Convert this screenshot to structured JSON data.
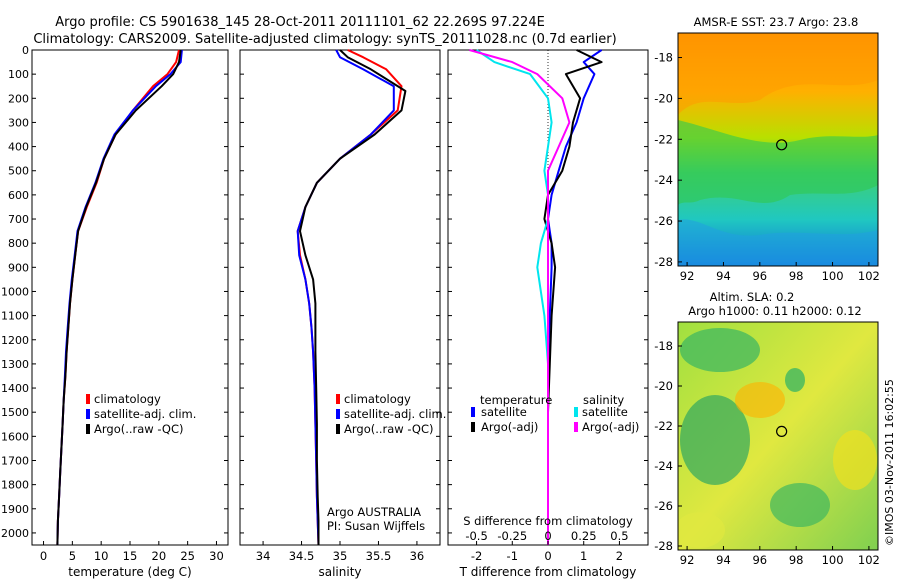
{
  "title_line1": "Argo profile: CS 5901638_145 28-Oct-2011 20111101_62 22.269S 97.224E",
  "title_line2": "Climatology: CARS2009. Satellite-adjusted climatology: synTS_20111028.nc (0.7d earlier)",
  "colors": {
    "climatology": "#ff0000",
    "satellite": "#0000ff",
    "argo": "#000000",
    "sat_salinity": "#00e5ee",
    "argo_salinity": "#ff00ff"
  },
  "chart_data": [
    {
      "type": "line",
      "name": "temperature-profile",
      "xlabel": "temperature (deg C)",
      "ylabel": "",
      "xlim": [
        -2,
        32
      ],
      "ylim": [
        2050,
        0
      ],
      "xticks": [
        0,
        5,
        10,
        15,
        20,
        25,
        30
      ],
      "yticks": [
        0,
        100,
        200,
        300,
        400,
        500,
        600,
        700,
        800,
        900,
        1000,
        1100,
        1200,
        1300,
        1400,
        1500,
        1600,
        1700,
        1800,
        1900,
        2000
      ],
      "legend": [
        "climatology",
        "satellite-adj. clim.",
        "Argo(..raw -QC)"
      ],
      "legend_position": "lower-middle",
      "series": [
        {
          "name": "climatology",
          "color": "#ff0000",
          "x": [
            23.5,
            23.0,
            21.5,
            19.0,
            15.5,
            12.5,
            10.5,
            9.2,
            7.5,
            6.0,
            5.5,
            5.0,
            4.6,
            4.3,
            4.0,
            3.8,
            3.5,
            3.3,
            3.1,
            2.9,
            2.7,
            2.5,
            2.4
          ],
          "y": [
            0,
            50,
            100,
            150,
            250,
            350,
            450,
            550,
            650,
            750,
            850,
            950,
            1050,
            1150,
            1250,
            1350,
            1450,
            1550,
            1650,
            1750,
            1850,
            1950,
            2050
          ]
        },
        {
          "name": "satellite-adj. clim.",
          "color": "#0000ff",
          "x": [
            24.0,
            23.8,
            22.0,
            19.5,
            15.5,
            12.3,
            10.4,
            9.0,
            7.3,
            5.9,
            5.4,
            4.9,
            4.5,
            4.2,
            3.9,
            3.7,
            3.5,
            3.3,
            3.1,
            2.9,
            2.7,
            2.5,
            2.4
          ],
          "y": [
            0,
            50,
            100,
            150,
            250,
            350,
            450,
            550,
            650,
            750,
            850,
            950,
            1050,
            1150,
            1250,
            1350,
            1450,
            1550,
            1650,
            1750,
            1850,
            1950,
            2050
          ]
        },
        {
          "name": "Argo(..raw -QC)",
          "color": "#000000",
          "x": [
            23.8,
            23.5,
            22.5,
            20.5,
            16.0,
            12.5,
            10.5,
            9.1,
            7.4,
            6.0,
            5.5,
            5.0,
            4.6,
            4.3,
            4.0,
            3.8,
            3.5,
            3.3,
            3.1,
            2.9,
            2.7,
            2.5,
            2.4
          ],
          "y": [
            0,
            50,
            100,
            150,
            250,
            350,
            450,
            550,
            650,
            750,
            850,
            950,
            1050,
            1150,
            1250,
            1350,
            1450,
            1550,
            1650,
            1750,
            1850,
            1950,
            2050
          ]
        }
      ]
    },
    {
      "type": "line",
      "name": "salinity-profile",
      "xlabel": "salinity",
      "ylabel": "",
      "xlim": [
        33.7,
        36.3
      ],
      "ylim": [
        2050,
        0
      ],
      "xticks": [
        34,
        34.5,
        35,
        35.5,
        36
      ],
      "legend": [
        "climatology",
        "satellite-adj. clim.",
        "Argo(..raw -QC)"
      ],
      "legend_position": "lower-middle",
      "annotations": [
        "Argo AUSTRALIA",
        "PI: Susan Wijffels"
      ],
      "series": [
        {
          "name": "climatology",
          "color": "#ff0000",
          "x": [
            35.1,
            35.3,
            35.6,
            35.8,
            35.75,
            35.4,
            35.0,
            34.7,
            34.55,
            34.45,
            34.48,
            34.55,
            34.6,
            34.63,
            34.65,
            34.67,
            34.68,
            34.69,
            34.7,
            34.71,
            34.72
          ],
          "y": [
            0,
            30,
            80,
            150,
            250,
            350,
            450,
            550,
            650,
            750,
            850,
            950,
            1050,
            1150,
            1250,
            1400,
            1550,
            1700,
            1850,
            1950,
            2050
          ]
        },
        {
          "name": "satellite-adj. clim.",
          "color": "#0000ff",
          "x": [
            34.95,
            35.0,
            35.3,
            35.7,
            35.7,
            35.4,
            35.0,
            34.7,
            34.55,
            34.45,
            34.47,
            34.55,
            34.6,
            34.63,
            34.65,
            34.67,
            34.68,
            34.69,
            34.7,
            34.71,
            34.72
          ],
          "y": [
            0,
            30,
            80,
            150,
            250,
            350,
            450,
            550,
            650,
            750,
            850,
            950,
            1050,
            1150,
            1250,
            1400,
            1550,
            1700,
            1850,
            1950,
            2050
          ]
        },
        {
          "name": "Argo(..raw -QC)",
          "color": "#000000",
          "x": [
            35.0,
            35.1,
            35.4,
            35.85,
            35.8,
            35.45,
            35.0,
            34.7,
            34.55,
            34.48,
            34.55,
            34.65,
            34.68,
            34.68,
            34.68,
            34.69,
            34.7,
            34.7,
            34.71,
            34.72,
            34.72
          ],
          "y": [
            0,
            30,
            80,
            170,
            250,
            350,
            450,
            550,
            650,
            750,
            850,
            950,
            1050,
            1150,
            1250,
            1400,
            1550,
            1700,
            1850,
            1950,
            2050
          ]
        }
      ]
    },
    {
      "type": "line",
      "name": "difference-profile",
      "xlabel": "T difference from climatology",
      "xlabel_top": "S difference from climatology",
      "xlim": [
        -2.8,
        2.8
      ],
      "ylim": [
        2050,
        0
      ],
      "xticks": [
        -2,
        -1,
        0,
        1,
        2
      ],
      "xticks_s": [
        -0.5,
        -0.25,
        0,
        0.25,
        0.5
      ],
      "xticklabels_s": [
        "-0.5",
        "-0.25",
        "0",
        "0.25",
        "0.5"
      ],
      "legend_groups": [
        "temperature",
        "salinity"
      ],
      "legend": [
        "satellite",
        "Argo(-adj)",
        "satellite",
        "Argo(-adj)"
      ],
      "legend_position": "lower-middle",
      "series": [
        {
          "name": "satellite",
          "group": "temperature",
          "color": "#0000ff",
          "x": [
            1.5,
            1.0,
            1.3,
            1.0,
            0.8,
            0.5,
            0.3,
            0.1,
            0.0,
            0.1,
            0.1,
            0.05,
            0.0,
            0.0,
            0.0,
            0.0,
            0.0,
            0.0
          ],
          "y": [
            0,
            50,
            100,
            200,
            300,
            400,
            500,
            600,
            700,
            800,
            900,
            1100,
            1300,
            1500,
            1700,
            1850,
            1950,
            2050
          ]
        },
        {
          "name": "Argo(-adj)",
          "group": "temperature",
          "color": "#000000",
          "x": [
            0.8,
            1.5,
            0.5,
            0.9,
            0.7,
            0.6,
            0.4,
            0.0,
            -0.1,
            0.1,
            0.2,
            0.1,
            0.05,
            0.0,
            0.0,
            0.0,
            0.0,
            0.0
          ],
          "y": [
            0,
            50,
            100,
            200,
            300,
            400,
            500,
            600,
            700,
            800,
            900,
            1100,
            1300,
            1500,
            1700,
            1850,
            1950,
            2050
          ]
        },
        {
          "name": "satellite",
          "group": "salinity",
          "color": "#00e5ee",
          "x": [
            -2.0,
            -1.5,
            -0.5,
            0.0,
            0.1,
            0.0,
            -0.1,
            0.0,
            0.0,
            -0.2,
            -0.3,
            -0.1,
            0.0,
            0.0,
            0.0,
            0.0,
            0.0,
            0.0
          ],
          "y": [
            0,
            50,
            100,
            200,
            300,
            400,
            500,
            600,
            700,
            800,
            900,
            1100,
            1300,
            1500,
            1700,
            1850,
            1950,
            2050
          ]
        },
        {
          "name": "Argo(-adj)",
          "group": "salinity",
          "color": "#ff00ff",
          "x": [
            -2.2,
            -1.0,
            -0.3,
            0.4,
            0.6,
            0.3,
            0.0,
            0.0,
            0.0,
            0.0,
            0.0,
            0.0,
            0.0,
            0.0,
            0.0,
            0.0,
            0.0,
            0.0
          ],
          "y": [
            0,
            50,
            100,
            200,
            300,
            400,
            500,
            600,
            700,
            800,
            900,
            1100,
            1300,
            1500,
            1700,
            1850,
            1950,
            2050
          ]
        }
      ]
    },
    {
      "type": "heatmap",
      "name": "sst-map",
      "title": "AMSR-E SST: 23.7 Argo: 23.8",
      "xlim": [
        91.5,
        102.5
      ],
      "ylim": [
        -28.2,
        -16.8
      ],
      "xticks": [
        92,
        94,
        96,
        98,
        100,
        102
      ],
      "yticks": [
        -18,
        -20,
        -22,
        -24,
        -26,
        -28
      ],
      "marker": {
        "lon": 97.2,
        "lat": -22.27
      }
    },
    {
      "type": "heatmap",
      "name": "sla-map",
      "title_line1": "Altim. SLA: 0.2",
      "title_line2": "Argo h1000: 0.11 h2000: 0.12",
      "xlim": [
        91.5,
        102.5
      ],
      "ylim": [
        -28.2,
        -16.8
      ],
      "xticks": [
        92,
        94,
        96,
        98,
        100,
        102
      ],
      "yticks": [
        -18,
        -20,
        -22,
        -24,
        -26,
        -28
      ],
      "marker": {
        "lon": 97.2,
        "lat": -22.27
      }
    }
  ],
  "footer_stamp": "©IMOS 03-Nov-2011 16:02:55"
}
